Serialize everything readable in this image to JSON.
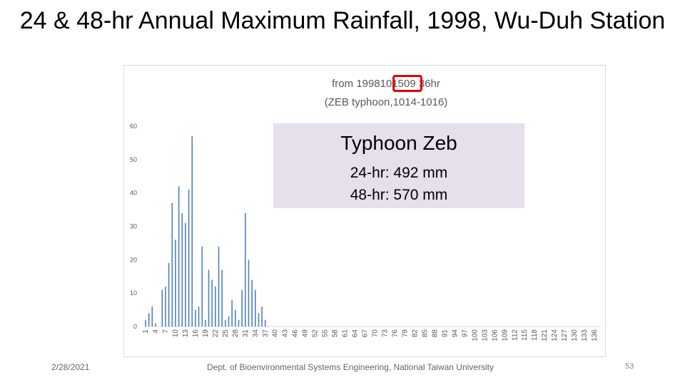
{
  "slide": {
    "title": "24 & 48-hr Annual Maximum Rainfall, 1998, Wu-Duh Station",
    "footer_date": "2/28/2021",
    "footer_center": "Dept. of Bioenvironmental Systems Engineering, National Taiwan University",
    "page_number": "53"
  },
  "callout": {
    "title": "Typhoon Zeb",
    "line1": "24-hr: 492 mm",
    "line2": "48-hr: 570 mm",
    "background": "#e5e0ec"
  },
  "chart_data": {
    "type": "bar",
    "title_line1_prefix": "from 1998101509 ",
    "title_line1_highlight": "36hr",
    "title_line2": "(ZEB typhoon,1014-1016)",
    "highlight_color": "#e00000",
    "bar_color": "#4f81bd",
    "ylim": [
      0,
      60
    ],
    "yticks": [
      0,
      10,
      20,
      30,
      40,
      50,
      60
    ],
    "x_start": 1,
    "x_end": 137,
    "x_tick_labels": [
      1,
      4,
      7,
      10,
      13,
      16,
      19,
      22,
      25,
      28,
      31,
      34,
      37,
      40,
      43,
      46,
      49,
      52,
      55,
      58,
      61,
      64,
      67,
      70,
      73,
      76,
      79,
      82,
      85,
      88,
      91,
      94,
      97,
      100,
      103,
      106,
      109,
      112,
      115,
      118,
      121,
      124,
      127,
      130,
      133,
      136
    ],
    "values": [
      2,
      4,
      6,
      1,
      0,
      11,
      12,
      19,
      37,
      26,
      42,
      34,
      31,
      41,
      57,
      5,
      6,
      24,
      2,
      17,
      14,
      12,
      24,
      17,
      2,
      3,
      8,
      5,
      2,
      11,
      34,
      20,
      14,
      11,
      4,
      6,
      2
    ],
    "grid": false
  }
}
